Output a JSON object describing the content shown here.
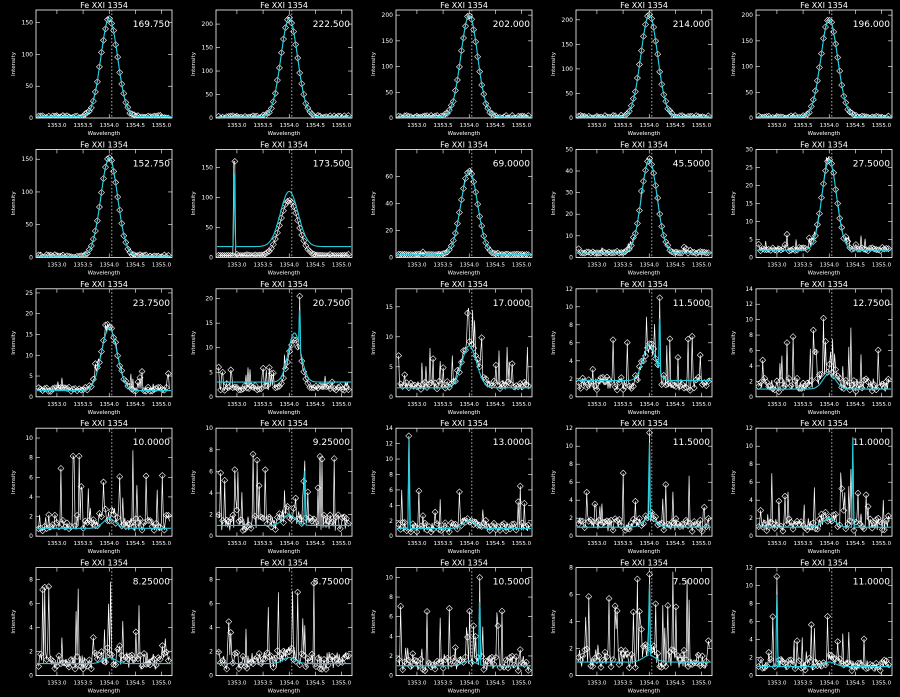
{
  "panel_title": "Fe XXI 1354",
  "xlabel": "Wavelength",
  "ylabel": "Intensity",
  "xticks": [
    1353.0,
    1353.5,
    1354.0,
    1354.5,
    1355.0
  ],
  "xtick_labels": [
    "1353.0",
    "1353.5",
    "1354.0",
    "1354.5",
    "1355.0"
  ],
  "colors": {
    "background": "#000000",
    "data": "#ffffff",
    "fit": "#22ccdd"
  },
  "chart_data": [
    {
      "type": "line",
      "title": "Fe XXI 1354",
      "annotation": "169.750",
      "xlabel": "Wavelength",
      "ylabel": "Intensity",
      "xlim": [
        1352.6,
        1355.2
      ],
      "ylim": [
        0,
        170
      ],
      "yticks": [
        0,
        50,
        100,
        150
      ],
      "ref_line_x": 1354.05,
      "center": 1354.0,
      "width": 0.16,
      "amplitude": 155,
      "baseline": 2,
      "noise": 0,
      "spike": null
    },
    {
      "type": "line",
      "title": "Fe XXI 1354",
      "annotation": "222.500",
      "xlabel": "Wavelength",
      "ylabel": "Intensity",
      "xlim": [
        1352.6,
        1355.2
      ],
      "ylim": [
        0,
        230
      ],
      "yticks": [
        0,
        50,
        100,
        150,
        200
      ],
      "ref_line_x": 1354.05,
      "center": 1354.0,
      "width": 0.16,
      "amplitude": 210,
      "baseline": 2,
      "noise": 0,
      "spike": null
    },
    {
      "type": "line",
      "title": "Fe XXI 1354",
      "annotation": "202.000",
      "xlabel": "Wavelength",
      "ylabel": "Intensity",
      "xlim": [
        1352.6,
        1355.2
      ],
      "ylim": [
        0,
        210
      ],
      "yticks": [
        0,
        50,
        100,
        150,
        200
      ],
      "ref_line_x": 1354.05,
      "center": 1354.0,
      "width": 0.16,
      "amplitude": 198,
      "baseline": 2,
      "noise": 0,
      "spike": null
    },
    {
      "type": "line",
      "title": "Fe XXI 1354",
      "annotation": "214.000",
      "xlabel": "Wavelength",
      "ylabel": "Intensity",
      "xlim": [
        1352.6,
        1355.2
      ],
      "ylim": [
        0,
        220
      ],
      "yticks": [
        0,
        50,
        100,
        150,
        200
      ],
      "ref_line_x": 1354.05,
      "center": 1354.0,
      "width": 0.16,
      "amplitude": 208,
      "baseline": 2,
      "noise": 0,
      "spike": null
    },
    {
      "type": "line",
      "title": "Fe XXI 1354",
      "annotation": "196.000",
      "xlabel": "Wavelength",
      "ylabel": "Intensity",
      "xlim": [
        1352.6,
        1355.2
      ],
      "ylim": [
        0,
        210
      ],
      "yticks": [
        0,
        50,
        100,
        150,
        200
      ],
      "ref_line_x": 1354.05,
      "center": 1354.0,
      "width": 0.16,
      "amplitude": 190,
      "baseline": 2,
      "noise": 0,
      "spike": null
    },
    {
      "type": "line",
      "title": "Fe XXI 1354",
      "annotation": "152.750",
      "xlabel": "Wavelength",
      "ylabel": "Intensity",
      "xlim": [
        1352.6,
        1355.2
      ],
      "ylim": [
        0,
        165
      ],
      "yticks": [
        0,
        50,
        100,
        150
      ],
      "ref_line_x": 1354.05,
      "center": 1354.0,
      "width": 0.16,
      "amplitude": 150,
      "baseline": 2,
      "noise": 0,
      "spike": null
    },
    {
      "type": "line",
      "title": "Fe XXI 1354",
      "annotation": "173.500",
      "xlabel": "Wavelength",
      "ylabel": "Intensity",
      "xlim": [
        1352.6,
        1355.2
      ],
      "ylim": [
        0,
        180
      ],
      "yticks": [
        0,
        50,
        100,
        150
      ],
      "ref_line_x": 1354.05,
      "center": 1354.0,
      "width": 0.17,
      "amplitude": 92,
      "baseline": 3,
      "noise": 2,
      "spike": {
        "x": 1352.95,
        "y": 160
      },
      "fit_baseline": 18
    },
    {
      "type": "line",
      "title": "Fe XXI 1354",
      "annotation": "69.0000",
      "xlabel": "Wavelength",
      "ylabel": "Intensity",
      "xlim": [
        1352.6,
        1355.2
      ],
      "ylim": [
        0,
        80
      ],
      "yticks": [
        0,
        20,
        40,
        60
      ],
      "ref_line_x": 1354.05,
      "center": 1354.0,
      "width": 0.16,
      "amplitude": 62,
      "baseline": 2,
      "noise": 2,
      "spike": null
    },
    {
      "type": "line",
      "title": "Fe XXI 1354",
      "annotation": "45.5000",
      "xlabel": "Wavelength",
      "ylabel": "Intensity",
      "xlim": [
        1352.6,
        1355.2
      ],
      "ylim": [
        0,
        50
      ],
      "yticks": [
        0,
        10,
        20,
        30,
        40,
        50
      ],
      "ref_line_x": 1354.05,
      "center": 1354.0,
      "width": 0.15,
      "amplitude": 43,
      "baseline": 2,
      "noise": 3,
      "spike": null
    },
    {
      "type": "line",
      "title": "Fe XXI 1354",
      "annotation": "27.5000",
      "xlabel": "Wavelength",
      "ylabel": "Intensity",
      "xlim": [
        1352.6,
        1355.2
      ],
      "ylim": [
        0,
        30
      ],
      "yticks": [
        0,
        5,
        10,
        15,
        20,
        25,
        30
      ],
      "ref_line_x": 1354.05,
      "center": 1354.0,
      "width": 0.14,
      "amplitude": 25,
      "baseline": 2,
      "noise": 4,
      "spike": null
    },
    {
      "type": "line",
      "title": "Fe XXI 1354",
      "annotation": "23.7500",
      "xlabel": "Wavelength",
      "ylabel": "Intensity",
      "xlim": [
        1352.6,
        1355.2
      ],
      "ylim": [
        0,
        26
      ],
      "yticks": [
        0,
        5,
        10,
        15,
        20,
        25
      ],
      "ref_line_x": 1354.05,
      "center": 1354.0,
      "width": 0.15,
      "amplitude": 15,
      "baseline": 1.5,
      "noise": 4,
      "spike": null
    },
    {
      "type": "line",
      "title": "Fe XXI 1354",
      "annotation": "20.7500",
      "xlabel": "Wavelength",
      "ylabel": "Intensity",
      "xlim": [
        1352.6,
        1355.2
      ],
      "ylim": [
        0,
        22
      ],
      "yticks": [
        0,
        5,
        10,
        15,
        20
      ],
      "ref_line_x": 1354.05,
      "center": 1354.1,
      "width": 0.12,
      "amplitude": 10,
      "baseline": 1.5,
      "noise": 4,
      "spike": {
        "x": 1354.2,
        "y": 20.5
      },
      "fit_baseline": 3
    },
    {
      "type": "line",
      "title": "Fe XXI 1354",
      "annotation": "17.0000",
      "xlabel": "Wavelength",
      "ylabel": "Intensity",
      "xlim": [
        1352.6,
        1355.2
      ],
      "ylim": [
        0,
        18
      ],
      "yticks": [
        0,
        5,
        10,
        15
      ],
      "ref_line_x": 1354.05,
      "center": 1354.0,
      "width": 0.14,
      "amplitude": 7,
      "baseline": 1.5,
      "noise": 6,
      "spike": null
    },
    {
      "type": "line",
      "title": "Fe XXI 1354",
      "annotation": "11.5000",
      "xlabel": "Wavelength",
      "ylabel": "Intensity",
      "xlim": [
        1352.6,
        1355.2
      ],
      "ylim": [
        0,
        12
      ],
      "yticks": [
        0,
        2,
        4,
        6,
        8,
        10,
        12
      ],
      "ref_line_x": 1354.05,
      "center": 1354.0,
      "width": 0.12,
      "amplitude": 4,
      "baseline": 1,
      "noise": 6,
      "spike": {
        "x": 1354.2,
        "y": 11
      },
      "fit_baseline": 1.8
    },
    {
      "type": "line",
      "title": "Fe XXI 1354",
      "annotation": "12.7500",
      "xlabel": "Wavelength",
      "ylabel": "Intensity",
      "xlim": [
        1352.6,
        1355.2
      ],
      "ylim": [
        0,
        14
      ],
      "yticks": [
        0,
        2,
        4,
        6,
        8,
        10,
        12,
        14
      ],
      "ref_line_x": 1354.05,
      "center": 1354.0,
      "width": 0.12,
      "amplitude": 2,
      "baseline": 1,
      "noise": 7,
      "spike": null
    },
    {
      "type": "line",
      "title": "Fe XXI 1354",
      "annotation": "10.0000",
      "xlabel": "Wavelength",
      "ylabel": "Intensity",
      "xlim": [
        1352.6,
        1355.2
      ],
      "ylim": [
        0,
        11
      ],
      "yticks": [
        0,
        2,
        4,
        6,
        8,
        10
      ],
      "ref_line_x": 1354.05,
      "center": 1354.0,
      "width": 0.12,
      "amplitude": 1,
      "baseline": 0.8,
      "noise": 7,
      "spike": null
    },
    {
      "type": "line",
      "title": "Fe XXI 1354",
      "annotation": "9.25000",
      "xlabel": "Wavelength",
      "ylabel": "Intensity",
      "xlim": [
        1352.6,
        1355.2
      ],
      "ylim": [
        0,
        10
      ],
      "yticks": [
        0,
        2,
        4,
        6,
        8,
        10
      ],
      "ref_line_x": 1354.05,
      "center": 1354.0,
      "width": 0.12,
      "amplitude": 1,
      "baseline": 0.8,
      "noise": 6,
      "spike": {
        "x": 1354.3,
        "y": 7
      },
      "fit_baseline": 1
    },
    {
      "type": "line",
      "title": "Fe XXI 1354",
      "annotation": "13.0000",
      "xlabel": "Wavelength",
      "ylabel": "Intensity",
      "xlim": [
        1352.6,
        1355.2
      ],
      "ylim": [
        0,
        14
      ],
      "yticks": [
        0,
        2,
        4,
        6,
        8,
        10,
        12,
        14
      ],
      "ref_line_x": 1354.05,
      "center": 1354.0,
      "width": 0.12,
      "amplitude": 1,
      "baseline": 0.8,
      "noise": 5,
      "spike": {
        "x": 1352.85,
        "y": 13
      },
      "fit_baseline": 1
    },
    {
      "type": "line",
      "title": "Fe XXI 1354",
      "annotation": "11.5000",
      "xlabel": "Wavelength",
      "ylabel": "Intensity",
      "xlim": [
        1352.6,
        1355.2
      ],
      "ylim": [
        0,
        12
      ],
      "yticks": [
        0,
        2,
        4,
        6,
        8,
        10,
        12
      ],
      "ref_line_x": 1354.05,
      "center": 1354.0,
      "width": 0.12,
      "amplitude": 1,
      "baseline": 0.8,
      "noise": 6,
      "spike": {
        "x": 1354.0,
        "y": 11.5
      },
      "fit_baseline": 1
    },
    {
      "type": "line",
      "title": "Fe XXI 1354",
      "annotation": "11.0000",
      "xlabel": "Wavelength",
      "ylabel": "Intensity",
      "xlim": [
        1352.6,
        1355.2
      ],
      "ylim": [
        0,
        12
      ],
      "yticks": [
        0,
        2,
        4,
        6,
        8,
        10,
        12
      ],
      "ref_line_x": 1354.05,
      "center": 1354.0,
      "width": 0.12,
      "amplitude": 1,
      "baseline": 0.8,
      "noise": 6,
      "spike": {
        "x": 1354.45,
        "y": 11
      },
      "fit_baseline": 1
    },
    {
      "type": "line",
      "title": "Fe XXI 1354",
      "annotation": "8.25000",
      "xlabel": "Wavelength",
      "ylabel": "Intensity",
      "xlim": [
        1352.6,
        1355.2
      ],
      "ylim": [
        0,
        9
      ],
      "yticks": [
        0,
        2,
        4,
        6,
        8
      ],
      "ref_line_x": 1354.05,
      "center": 1354.0,
      "width": 0.12,
      "amplitude": 0.5,
      "baseline": 0.8,
      "noise": 6,
      "spike": null,
      "fit_baseline": 1
    },
    {
      "type": "line",
      "title": "Fe XXI 1354",
      "annotation": "8.75000",
      "xlabel": "Wavelength",
      "ylabel": "Intensity",
      "xlim": [
        1352.6,
        1355.2
      ],
      "ylim": [
        0,
        9
      ],
      "yticks": [
        0,
        2,
        4,
        6,
        8
      ],
      "ref_line_x": 1354.05,
      "center": 1354.0,
      "width": 0.12,
      "amplitude": 0.5,
      "baseline": 0.8,
      "noise": 6,
      "spike": null,
      "fit_baseline": 1
    },
    {
      "type": "line",
      "title": "Fe XXI 1354",
      "annotation": "10.5000",
      "xlabel": "Wavelength",
      "ylabel": "Intensity",
      "xlim": [
        1352.6,
        1355.2
      ],
      "ylim": [
        0,
        11
      ],
      "yticks": [
        0,
        2,
        4,
        6,
        8,
        10
      ],
      "ref_line_x": 1354.05,
      "center": 1354.0,
      "width": 0.12,
      "amplitude": 0.5,
      "baseline": 0.8,
      "noise": 6,
      "spike": {
        "x": 1354.2,
        "y": 10
      },
      "fit_baseline": 1
    },
    {
      "type": "line",
      "title": "Fe XXI 1354",
      "annotation": "7.50000",
      "xlabel": "Wavelength",
      "ylabel": "Intensity",
      "xlim": [
        1352.6,
        1355.2
      ],
      "ylim": [
        0,
        8
      ],
      "yticks": [
        0,
        2,
        4,
        6,
        8
      ],
      "ref_line_x": 1354.05,
      "center": 1354.0,
      "width": 0.12,
      "amplitude": 0.5,
      "baseline": 0.8,
      "noise": 6,
      "spike": {
        "x": 1354.0,
        "y": 7.5
      },
      "fit_baseline": 1
    },
    {
      "type": "line",
      "title": "Fe XXI 1354",
      "annotation": "11.0000",
      "xlabel": "Wavelength",
      "ylabel": "Intensity",
      "xlim": [
        1352.6,
        1355.2
      ],
      "ylim": [
        0,
        12
      ],
      "yticks": [
        0,
        2,
        4,
        6,
        8,
        10,
        12
      ],
      "ref_line_x": 1354.05,
      "center": 1354.0,
      "width": 0.12,
      "amplitude": 0.5,
      "baseline": 0.8,
      "noise": 5,
      "spike": {
        "x": 1353.0,
        "y": 11
      },
      "fit_baseline": 1
    }
  ]
}
